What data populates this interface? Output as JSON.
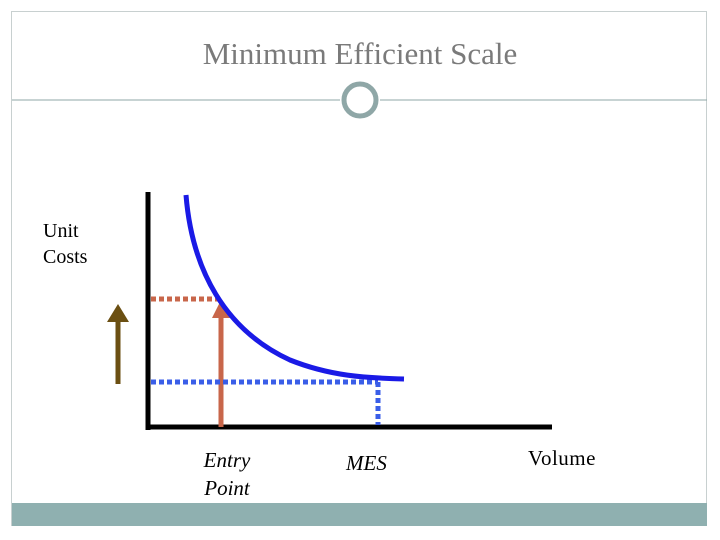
{
  "title": "Minimum Efficient Scale",
  "labels": {
    "y_axis_line1": "Unit",
    "y_axis_line2": "Costs",
    "x_axis": "Volume",
    "entry_line1": "Entry",
    "entry_line2": "Point",
    "mes": "MES"
  },
  "colors": {
    "title": "#7a7a7a",
    "curve": "#1a1ae6",
    "entry": "#c8664a",
    "mes_guide": "#3a5ee8",
    "left_arrow": "#6b4f12",
    "footer": "#8fb0b0",
    "divider": "#8fa7a7"
  },
  "icons": {
    "title_ornament": "ring-icon"
  }
}
